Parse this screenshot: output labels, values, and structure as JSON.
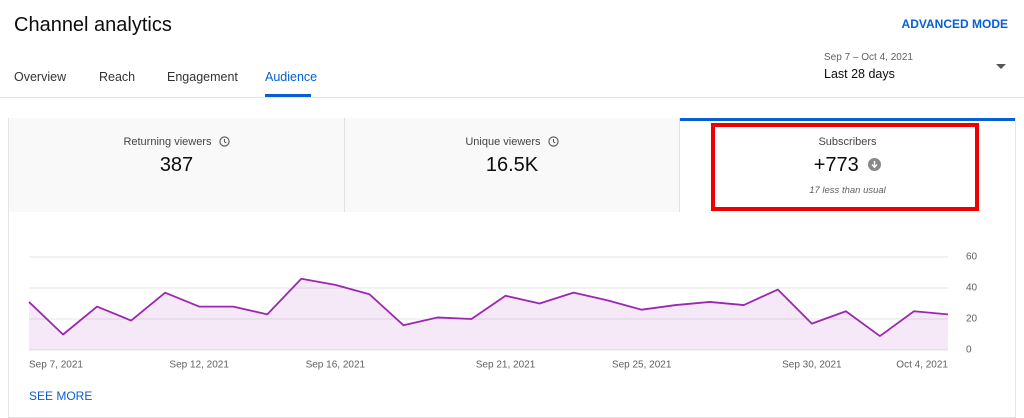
{
  "header": {
    "title": "Channel analytics",
    "action": "ADVANCED MODE"
  },
  "tabs": [
    "Overview",
    "Reach",
    "Engagement",
    "Audience"
  ],
  "active_tab": "Audience",
  "date_range": {
    "dates": "Sep 7 – Oct 4, 2021",
    "period": "Last 28 days"
  },
  "cards": [
    {
      "label": "Returning viewers",
      "value": "387"
    },
    {
      "label": "Unique viewers",
      "value": "16.5K"
    },
    {
      "label": "Subscribers",
      "value": "+773",
      "note": "17 less than usual"
    }
  ],
  "chart_data": {
    "type": "line",
    "categories": [
      "Sep 7, 2021",
      null,
      null,
      null,
      null,
      "Sep 12, 2021",
      null,
      null,
      null,
      "Sep 16, 2021",
      null,
      null,
      null,
      null,
      "Sep 21, 2021",
      null,
      null,
      null,
      "Sep 25, 2021",
      null,
      null,
      null,
      null,
      "Sep 30, 2021",
      null,
      null,
      null,
      "Oct 4, 2021"
    ],
    "series": [
      {
        "name": "Subscribers",
        "color": "#9c27b0",
        "values": [
          31,
          10,
          28,
          19,
          37,
          28,
          28,
          23,
          46,
          42,
          36,
          16,
          21,
          20,
          35,
          30,
          37,
          32,
          26,
          29,
          31,
          29,
          39,
          17,
          25,
          9,
          25,
          23
        ]
      }
    ],
    "ylim": [
      0,
      60
    ],
    "yticks": [
      0,
      20,
      40,
      60
    ],
    "grid": true
  },
  "footer": {
    "link": "SEE MORE"
  }
}
